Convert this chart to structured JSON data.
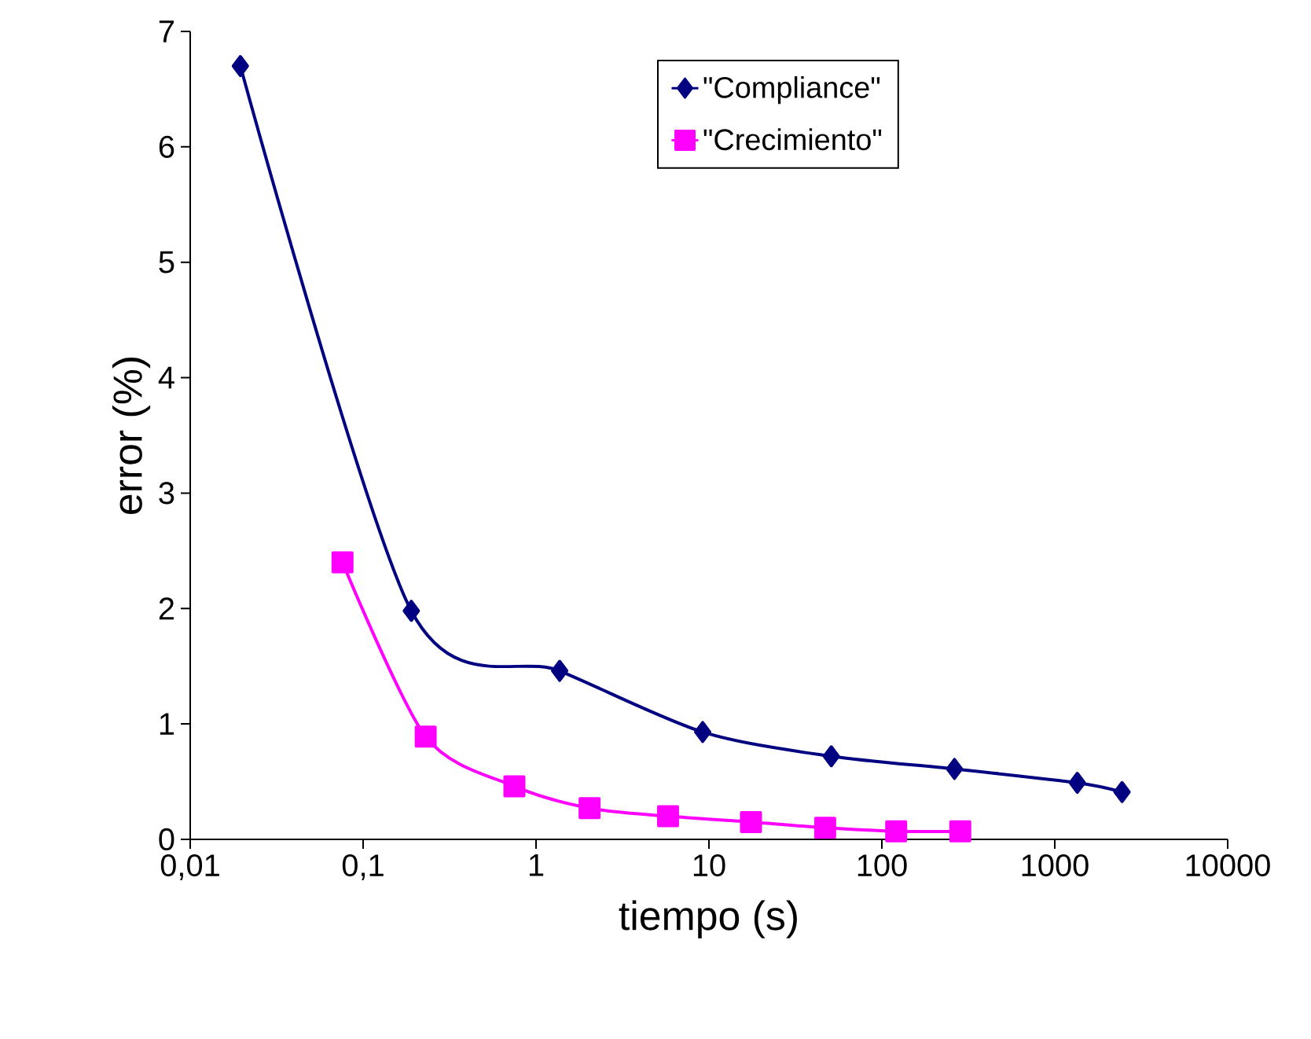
{
  "chart_data": {
    "type": "line",
    "xlabel": "tiempo (s)",
    "ylabel": "error (%)",
    "log": "x",
    "xlim": [
      0.01,
      10000
    ],
    "ylim": [
      0,
      7
    ],
    "xticks": [
      {
        "value": 0.01,
        "label": "0,01"
      },
      {
        "value": 0.1,
        "label": "0,1"
      },
      1,
      10,
      100,
      1000,
      10000
    ],
    "yticks": [
      0,
      1,
      2,
      3,
      4,
      5,
      6,
      7
    ],
    "grid": false,
    "legend": "top right",
    "line_style": "solid",
    "series": [
      {
        "name": "\"Compliance\"",
        "color": "#000080",
        "marker": "diamond",
        "x": [
          0.0195,
          0.19,
          1.37,
          9.2,
          51,
          263,
          1350,
          2450
        ],
        "values": [
          6.7,
          1.98,
          1.46,
          0.93,
          0.72,
          0.61,
          0.49,
          0.41
        ]
      },
      {
        "name": "\"Crecimiento\"",
        "color": "#ff00ff",
        "marker": "square",
        "x": [
          0.076,
          0.23,
          0.75,
          2.04,
          5.8,
          17.5,
          47,
          121,
          284
        ],
        "values": [
          2.4,
          0.89,
          0.46,
          0.27,
          0.2,
          0.15,
          0.1,
          0.07,
          0.07
        ]
      }
    ]
  }
}
